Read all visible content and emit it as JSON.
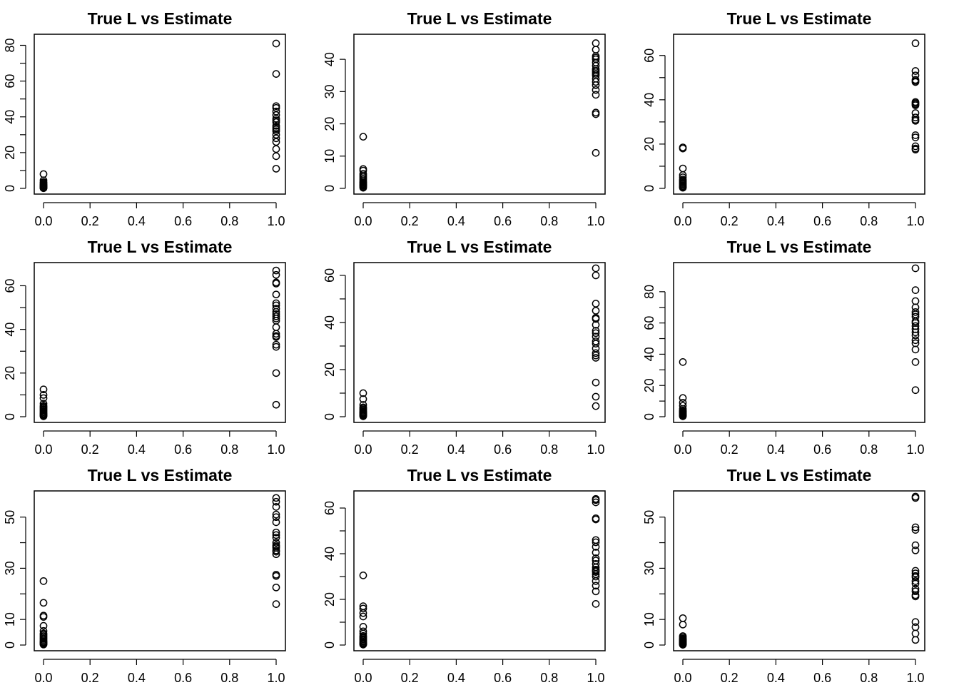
{
  "chart_data": [
    {
      "type": "scatter",
      "title": "True L vs Estimate",
      "xlim": [
        0,
        1
      ],
      "ylim": [
        0,
        83
      ],
      "xticks": [
        "0.0",
        "0.2",
        "0.4",
        "0.6",
        "0.8",
        "1.0"
      ],
      "yticks": [
        0,
        20,
        40,
        60,
        80
      ],
      "grid": false,
      "series": [
        {
          "x": [
            0,
            0,
            0,
            0,
            0,
            0,
            0,
            0,
            0,
            0,
            0,
            0,
            0,
            0,
            0
          ],
          "y": [
            8,
            4.5,
            3.5,
            3,
            2.5,
            2,
            1.8,
            1.5,
            1.2,
            1,
            0.8,
            0.6,
            0.4,
            0.2,
            0.1
          ]
        },
        {
          "x": [
            1,
            1,
            1,
            1,
            1,
            1,
            1,
            1,
            1,
            1,
            1,
            1,
            1,
            1,
            1,
            1,
            1,
            1,
            1
          ],
          "y": [
            81,
            64,
            46,
            45,
            43,
            41,
            39,
            38,
            37,
            35,
            34,
            33,
            32,
            30,
            28,
            26,
            22,
            18,
            11
          ]
        }
      ]
    },
    {
      "type": "scatter",
      "title": "True L vs Estimate",
      "xlim": [
        0,
        1
      ],
      "ylim": [
        0,
        46
      ],
      "xticks": [
        "0.0",
        "0.2",
        "0.4",
        "0.6",
        "0.8",
        "1.0"
      ],
      "yticks": [
        0,
        10,
        20,
        30,
        40
      ],
      "grid": false,
      "series": [
        {
          "x": [
            0,
            0,
            0,
            0,
            0,
            0,
            0,
            0,
            0,
            0,
            0,
            0,
            0,
            0,
            0,
            0
          ],
          "y": [
            16,
            6,
            5.5,
            4.5,
            4,
            3.5,
            3,
            2.5,
            2,
            1.8,
            1.5,
            1.2,
            1,
            0.8,
            0.5,
            0.2
          ]
        },
        {
          "x": [
            1,
            1,
            1,
            1,
            1,
            1,
            1,
            1,
            1,
            1,
            1,
            1,
            1,
            1,
            1,
            1,
            1,
            1,
            1,
            1
          ],
          "y": [
            45,
            43,
            41,
            40.5,
            39,
            38,
            37,
            36,
            35.5,
            35,
            34,
            33,
            32,
            30.5,
            29,
            23.5,
            23,
            11,
            40,
            36.5
          ]
        }
      ]
    },
    {
      "type": "scatter",
      "title": "True L vs Estimate",
      "xlim": [
        0,
        1
      ],
      "ylim": [
        0,
        67
      ],
      "xticks": [
        "0.0",
        "0.2",
        "0.4",
        "0.6",
        "0.8",
        "1.0"
      ],
      "yticks": [
        0,
        20,
        40,
        60
      ],
      "grid": false,
      "series": [
        {
          "x": [
            0,
            0,
            0,
            0,
            0,
            0,
            0,
            0,
            0,
            0,
            0,
            0,
            0,
            0
          ],
          "y": [
            18.5,
            18,
            9,
            6,
            5,
            4,
            3.5,
            3,
            2.5,
            2,
            1.5,
            1,
            0.6,
            0.3
          ]
        },
        {
          "x": [
            1,
            1,
            1,
            1,
            1,
            1,
            1,
            1,
            1,
            1,
            1,
            1,
            1,
            1,
            1,
            1,
            1,
            1,
            1
          ],
          "y": [
            65.5,
            53,
            51,
            49,
            48.5,
            39,
            38,
            37.5,
            34,
            32,
            31,
            30.5,
            24,
            23,
            19,
            18,
            17.5,
            38.5,
            48
          ]
        }
      ]
    },
    {
      "type": "scatter",
      "title": "True L vs Estimate",
      "xlim": [
        0,
        1
      ],
      "ylim": [
        0,
        68
      ],
      "xticks": [
        "0.0",
        "0.2",
        "0.4",
        "0.6",
        "0.8",
        "1.0"
      ],
      "yticks": [
        0,
        20,
        40,
        60
      ],
      "grid": false,
      "series": [
        {
          "x": [
            0,
            0,
            0,
            0,
            0,
            0,
            0,
            0,
            0,
            0,
            0,
            0,
            0,
            0,
            0,
            0
          ],
          "y": [
            12.5,
            10,
            8.5,
            6,
            5,
            4.5,
            4,
            3.5,
            3,
            2.5,
            2,
            1.5,
            1.2,
            0.8,
            0.5,
            0.2
          ]
        },
        {
          "x": [
            1,
            1,
            1,
            1,
            1,
            1,
            1,
            1,
            1,
            1,
            1,
            1,
            1,
            1,
            1,
            1,
            1,
            1,
            1,
            1,
            1
          ],
          "y": [
            67,
            65,
            61.5,
            61,
            56,
            52,
            51,
            49.5,
            47,
            46,
            45,
            44,
            41,
            38,
            37,
            36.5,
            33,
            32,
            20,
            5.5,
            48
          ]
        }
      ]
    },
    {
      "type": "scatter",
      "title": "True L vs Estimate",
      "xlim": [
        0,
        1
      ],
      "ylim": [
        0,
        63
      ],
      "xticks": [
        "0.0",
        "0.2",
        "0.4",
        "0.6",
        "0.8",
        "1.0"
      ],
      "yticks": [
        0,
        20,
        40,
        60
      ],
      "grid": false,
      "series": [
        {
          "x": [
            0,
            0,
            0,
            0,
            0,
            0,
            0,
            0,
            0,
            0,
            0,
            0,
            0,
            0,
            0
          ],
          "y": [
            10,
            7.5,
            5,
            4,
            3.5,
            3,
            2.5,
            2,
            1.8,
            1.5,
            1.2,
            1,
            0.7,
            0.4,
            0.2
          ]
        },
        {
          "x": [
            1,
            1,
            1,
            1,
            1,
            1,
            1,
            1,
            1,
            1,
            1,
            1,
            1,
            1,
            1,
            1,
            1,
            1,
            1
          ],
          "y": [
            63,
            60,
            48,
            45,
            42,
            39,
            36.5,
            34,
            32,
            31,
            29,
            27,
            26,
            25,
            14.5,
            8.5,
            4.5,
            35.5,
            41.5
          ]
        }
      ]
    },
    {
      "type": "scatter",
      "title": "True L vs Estimate",
      "xlim": [
        0,
        1
      ],
      "ylim": [
        0,
        95
      ],
      "xticks": [
        "0.0",
        "0.2",
        "0.4",
        "0.6",
        "0.8",
        "1.0"
      ],
      "yticks": [
        0,
        20,
        40,
        60,
        80
      ],
      "grid": false,
      "series": [
        {
          "x": [
            0,
            0,
            0,
            0,
            0,
            0,
            0,
            0,
            0,
            0,
            0,
            0,
            0,
            0
          ],
          "y": [
            35,
            12,
            9,
            7,
            5,
            4,
            3.5,
            3,
            2.5,
            2,
            1.5,
            1,
            0.6,
            0.3
          ]
        },
        {
          "x": [
            1,
            1,
            1,
            1,
            1,
            1,
            1,
            1,
            1,
            1,
            1,
            1,
            1,
            1,
            1,
            1,
            1,
            1
          ],
          "y": [
            95,
            81,
            74,
            70,
            67,
            64,
            61,
            58,
            56,
            54,
            52,
            49,
            47,
            43,
            35,
            17,
            65.5,
            60
          ]
        }
      ]
    },
    {
      "type": "scatter",
      "title": "True L vs Estimate",
      "xlim": [
        0,
        1
      ],
      "ylim": [
        0,
        58
      ],
      "xticks": [
        "0.0",
        "0.2",
        "0.4",
        "0.6",
        "0.8",
        "1.0"
      ],
      "yticks": [
        0,
        10,
        30,
        50
      ],
      "grid": false,
      "series": [
        {
          "x": [
            0,
            0,
            0,
            0,
            0,
            0,
            0,
            0,
            0,
            0,
            0,
            0,
            0,
            0,
            0,
            0,
            0,
            0
          ],
          "y": [
            25,
            16.5,
            11.5,
            11,
            7.5,
            5.5,
            4.5,
            4,
            3.5,
            3,
            2.5,
            2,
            1.5,
            1.2,
            1,
            0.7,
            0.4,
            0.2
          ]
        },
        {
          "x": [
            1,
            1,
            1,
            1,
            1,
            1,
            1,
            1,
            1,
            1,
            1,
            1,
            1,
            1,
            1,
            1,
            1,
            1,
            1,
            1
          ],
          "y": [
            57.5,
            56,
            54,
            51,
            50,
            48,
            44,
            43,
            40,
            39,
            38.5,
            38,
            36.5,
            35.5,
            27.5,
            27,
            22.5,
            16,
            42,
            37
          ]
        }
      ]
    },
    {
      "type": "scatter",
      "title": "True L vs Estimate",
      "xlim": [
        0,
        1
      ],
      "ylim": [
        0,
        65
      ],
      "xticks": [
        "0.0",
        "0.2",
        "0.4",
        "0.6",
        "0.8",
        "1.0"
      ],
      "yticks": [
        0,
        20,
        40,
        60
      ],
      "grid": false,
      "series": [
        {
          "x": [
            0,
            0,
            0,
            0,
            0,
            0,
            0,
            0,
            0,
            0,
            0,
            0,
            0,
            0,
            0,
            0,
            0,
            0
          ],
          "y": [
            30.5,
            17,
            16,
            14,
            12.5,
            8,
            6,
            5,
            4,
            3.5,
            3,
            2.5,
            2,
            1.5,
            1,
            0.7,
            0.4,
            0.2
          ]
        },
        {
          "x": [
            1,
            1,
            1,
            1,
            1,
            1,
            1,
            1,
            1,
            1,
            1,
            1,
            1,
            1,
            1,
            1,
            1,
            1,
            1,
            1,
            1,
            1
          ],
          "y": [
            64,
            63.5,
            62.5,
            55.5,
            55,
            46,
            45,
            43,
            40.5,
            38,
            35.5,
            34,
            33,
            32.5,
            32,
            31,
            30,
            28,
            26,
            23.5,
            18,
            37
          ]
        }
      ]
    },
    {
      "type": "scatter",
      "title": "True L vs Estimate",
      "xlim": [
        0,
        1
      ],
      "ylim": [
        0,
        58
      ],
      "xticks": [
        "0.0",
        "0.2",
        "0.4",
        "0.6",
        "0.8",
        "1.0"
      ],
      "yticks": [
        0,
        10,
        30,
        50
      ],
      "grid": false,
      "series": [
        {
          "x": [
            0,
            0,
            0,
            0,
            0,
            0,
            0,
            0,
            0,
            0,
            0,
            0,
            0,
            0,
            0
          ],
          "y": [
            10.5,
            8,
            3.5,
            3,
            2.5,
            2.2,
            2,
            1.7,
            1.5,
            1.2,
            1,
            0.8,
            0.5,
            0.3,
            0.1
          ]
        },
        {
          "x": [
            1,
            1,
            1,
            1,
            1,
            1,
            1,
            1,
            1,
            1,
            1,
            1,
            1,
            1,
            1,
            1,
            1,
            1,
            1,
            1
          ],
          "y": [
            58,
            57.5,
            46,
            45,
            39,
            37,
            29,
            28,
            27,
            26.5,
            25,
            24,
            22,
            21,
            19.5,
            19,
            9,
            7,
            4.5,
            2
          ]
        }
      ]
    }
  ]
}
